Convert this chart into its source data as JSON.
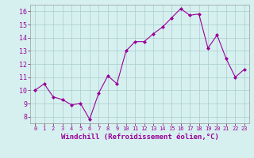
{
  "x": [
    0,
    1,
    2,
    3,
    4,
    5,
    6,
    7,
    8,
    9,
    10,
    11,
    12,
    13,
    14,
    15,
    16,
    17,
    18,
    19,
    20,
    21,
    22,
    23
  ],
  "y": [
    10.0,
    10.5,
    9.5,
    9.3,
    8.9,
    9.0,
    7.8,
    9.8,
    11.1,
    10.5,
    13.0,
    13.7,
    13.7,
    14.3,
    14.8,
    15.5,
    16.2,
    15.7,
    15.8,
    13.2,
    14.2,
    12.4,
    11.0,
    11.6
  ],
  "line_color": "#990099",
  "marker": "D",
  "markersize": 2.0,
  "linewidth": 0.8,
  "bg_color": "#d6f0f0",
  "grid_color": "#aacccc",
  "xlabel": "Windchill (Refroidissement éolien,°C)",
  "xlabel_fontsize": 6.5,
  "yticks": [
    8,
    9,
    10,
    11,
    12,
    13,
    14,
    15,
    16
  ],
  "ylim": [
    7.5,
    16.5
  ],
  "xlim": [
    -0.5,
    23.5
  ],
  "xtick_fontsize": 5.0,
  "ytick_fontsize": 6.0
}
